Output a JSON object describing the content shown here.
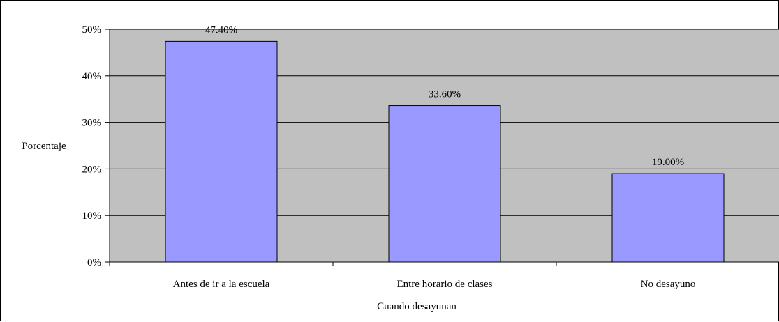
{
  "chart_data": {
    "type": "bar",
    "categories": [
      "Antes de ir a la escuela",
      "Entre horario de clases",
      "No desayuno"
    ],
    "values": [
      47.4,
      33.6,
      19.0
    ],
    "data_labels": [
      "47.40%",
      "33.60%",
      "19.00%"
    ],
    "xlabel": "Cuando desayunan",
    "ylabel": "Porcentaje",
    "ylim": [
      0,
      50
    ],
    "yticks": [
      0,
      10,
      20,
      30,
      40,
      50
    ],
    "ytick_labels": [
      "0%",
      "10%",
      "20%",
      "30%",
      "40%",
      "50%"
    ],
    "grid": true,
    "legend": "none",
    "colors": {
      "plot_background": "#c0c0c0",
      "bar_fill": "#9999ff",
      "bar_stroke": "#000000",
      "gridline": "#000000"
    }
  }
}
